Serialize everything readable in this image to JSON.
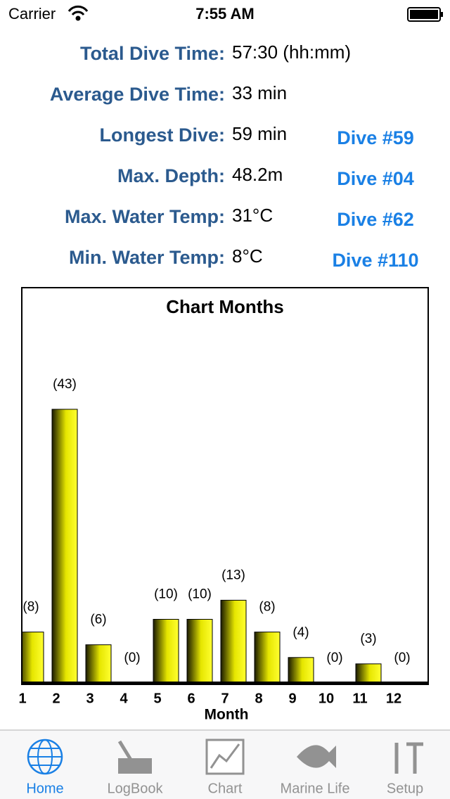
{
  "status_bar": {
    "carrier": "Carrier",
    "time": "7:55 AM"
  },
  "stats": [
    {
      "label": "Total Dive Time:",
      "value": "57:30 (hh:mm)"
    },
    {
      "label": "Average Dive Time:",
      "value": "33 min"
    },
    {
      "label": "Longest Dive:",
      "value": "59 min",
      "link": "Dive #59"
    },
    {
      "label": "Max. Depth:",
      "value": "48.2m",
      "link": "Dive #04"
    },
    {
      "label": "Max. Water Temp:",
      "value": "31°C",
      "link": "Dive #62"
    },
    {
      "label": "Min. Water Temp:",
      "value": "8°C",
      "link": "Dive #110"
    }
  ],
  "chart_data": {
    "type": "bar",
    "title": "Chart Months",
    "x_label": "Month",
    "categories": [
      "1",
      "2",
      "3",
      "4",
      "5",
      "6",
      "7",
      "8",
      "9",
      "10",
      "11",
      "12"
    ],
    "values": [
      8,
      43,
      6,
      0,
      10,
      10,
      13,
      8,
      4,
      0,
      3,
      0
    ],
    "value_labels": [
      "(8)",
      "(43)",
      "(6)",
      "(0)",
      "(10)",
      "(10)",
      "(13)",
      "(8)",
      "(4)",
      "(0)",
      "(3)",
      "(0)"
    ],
    "color": "#e6e600",
    "ylim": [
      0,
      62
    ]
  },
  "tab_bar": {
    "tabs": [
      "Home",
      "LogBook",
      "Chart",
      "Marine Life",
      "Setup"
    ],
    "selected": 0
  }
}
